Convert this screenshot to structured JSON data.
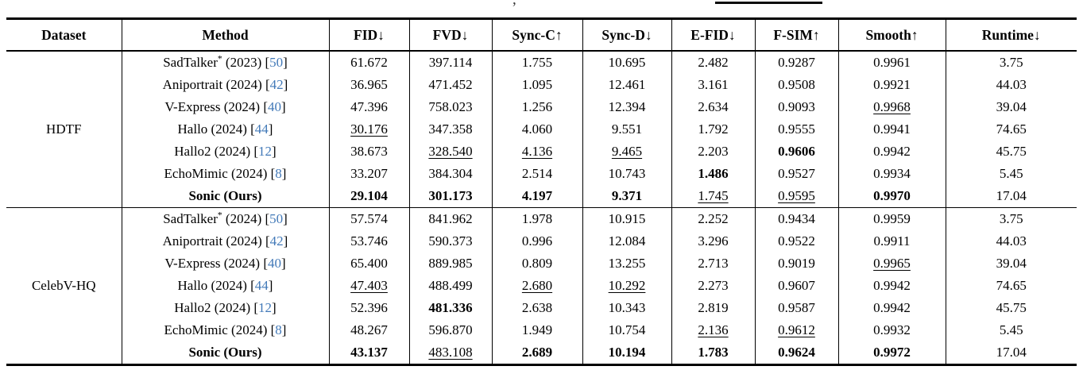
{
  "artifacts": {
    "caption_comma": ","
  },
  "colors": {
    "citation_blue": "#4279b8",
    "text": "#000000",
    "rules": "#000000"
  },
  "header": {
    "columns": [
      "Dataset",
      "Method",
      "FID↓",
      "FVD↓",
      "Sync-C↑",
      "Sync-D↓",
      "E-FID↓",
      "F-SIM↑",
      "Smooth↑",
      "Runtime↓"
    ]
  },
  "groups": [
    {
      "dataset": "HDTF",
      "rows": [
        {
          "method": {
            "bold": false,
            "parts": [
              {
                "t": "SadTalker"
              },
              {
                "t": "*",
                "sup": true
              },
              {
                "t": " (2023) ["
              },
              {
                "t": "50",
                "cite": true
              },
              {
                "t": "]"
              }
            ]
          },
          "metrics": [
            {
              "t": "61.672",
              "f": "n"
            },
            {
              "t": "397.114",
              "f": "n"
            },
            {
              "t": "1.755",
              "f": "n"
            },
            {
              "t": "10.695",
              "f": "n"
            },
            {
              "t": "2.482",
              "f": "n"
            },
            {
              "t": "0.9287",
              "f": "n"
            },
            {
              "t": "0.9961",
              "f": "n"
            },
            {
              "t": "3.75",
              "f": "n"
            }
          ]
        },
        {
          "method": {
            "bold": false,
            "parts": [
              {
                "t": "Aniportrait (2024) ["
              },
              {
                "t": "42",
                "cite": true
              },
              {
                "t": "]"
              }
            ]
          },
          "metrics": [
            {
              "t": "36.965",
              "f": "n"
            },
            {
              "t": "471.452",
              "f": "n"
            },
            {
              "t": "1.095",
              "f": "n"
            },
            {
              "t": "12.461",
              "f": "n"
            },
            {
              "t": "3.161",
              "f": "n"
            },
            {
              "t": "0.9508",
              "f": "n"
            },
            {
              "t": "0.9921",
              "f": "n"
            },
            {
              "t": "44.03",
              "f": "n"
            }
          ]
        },
        {
          "method": {
            "bold": false,
            "parts": [
              {
                "t": "V-Express (2024) ["
              },
              {
                "t": "40",
                "cite": true
              },
              {
                "t": "]"
              }
            ]
          },
          "metrics": [
            {
              "t": "47.396",
              "f": "n"
            },
            {
              "t": "758.023",
              "f": "n"
            },
            {
              "t": "1.256",
              "f": "n"
            },
            {
              "t": "12.394",
              "f": "n"
            },
            {
              "t": "2.634",
              "f": "n"
            },
            {
              "t": "0.9093",
              "f": "n"
            },
            {
              "t": "0.9968",
              "f": "u"
            },
            {
              "t": "39.04",
              "f": "n"
            }
          ]
        },
        {
          "method": {
            "bold": false,
            "parts": [
              {
                "t": "Hallo (2024) ["
              },
              {
                "t": "44",
                "cite": true
              },
              {
                "t": "]"
              }
            ]
          },
          "metrics": [
            {
              "t": "30.176",
              "f": "u"
            },
            {
              "t": "347.358",
              "f": "n"
            },
            {
              "t": "4.060",
              "f": "n"
            },
            {
              "t": "9.551",
              "f": "n"
            },
            {
              "t": "1.792",
              "f": "n"
            },
            {
              "t": "0.9555",
              "f": "n"
            },
            {
              "t": "0.9941",
              "f": "n"
            },
            {
              "t": "74.65",
              "f": "n"
            }
          ]
        },
        {
          "method": {
            "bold": false,
            "parts": [
              {
                "t": "Hallo2 (2024) ["
              },
              {
                "t": "12",
                "cite": true
              },
              {
                "t": "]"
              }
            ]
          },
          "metrics": [
            {
              "t": "38.673",
              "f": "n"
            },
            {
              "t": "328.540",
              "f": "u"
            },
            {
              "t": "4.136",
              "f": "u"
            },
            {
              "t": "9.465",
              "f": "u"
            },
            {
              "t": "2.203",
              "f": "n"
            },
            {
              "t": "0.9606",
              "f": "b"
            },
            {
              "t": "0.9942",
              "f": "n"
            },
            {
              "t": "45.75",
              "f": "n"
            }
          ]
        },
        {
          "method": {
            "bold": false,
            "parts": [
              {
                "t": "EchoMimic (2024) ["
              },
              {
                "t": "8",
                "cite": true
              },
              {
                "t": "]"
              }
            ]
          },
          "metrics": [
            {
              "t": "33.207",
              "f": "n"
            },
            {
              "t": "384.304",
              "f": "n"
            },
            {
              "t": "2.514",
              "f": "n"
            },
            {
              "t": "10.743",
              "f": "n"
            },
            {
              "t": "1.486",
              "f": "b"
            },
            {
              "t": "0.9527",
              "f": "n"
            },
            {
              "t": "0.9934",
              "f": "n"
            },
            {
              "t": "5.45",
              "f": "n"
            }
          ]
        },
        {
          "method": {
            "bold": true,
            "parts": [
              {
                "t": "Sonic (Ours)"
              }
            ]
          },
          "metrics": [
            {
              "t": "29.104",
              "f": "b"
            },
            {
              "t": "301.173",
              "f": "b"
            },
            {
              "t": "4.197",
              "f": "b"
            },
            {
              "t": "9.371",
              "f": "b"
            },
            {
              "t": "1.745",
              "f": "u"
            },
            {
              "t": "0.9595",
              "f": "u"
            },
            {
              "t": "0.9970",
              "f": "b"
            },
            {
              "t": "17.04",
              "f": "n"
            }
          ]
        }
      ]
    },
    {
      "dataset": "CelebV-HQ",
      "rows": [
        {
          "method": {
            "bold": false,
            "parts": [
              {
                "t": "SadTalker"
              },
              {
                "t": "*",
                "sup": true
              },
              {
                "t": " (2024) ["
              },
              {
                "t": "50",
                "cite": true
              },
              {
                "t": "]"
              }
            ]
          },
          "metrics": [
            {
              "t": "57.574",
              "f": "n"
            },
            {
              "t": "841.962",
              "f": "n"
            },
            {
              "t": "1.978",
              "f": "n"
            },
            {
              "t": "10.915",
              "f": "n"
            },
            {
              "t": "2.252",
              "f": "n"
            },
            {
              "t": "0.9434",
              "f": "n"
            },
            {
              "t": "0.9959",
              "f": "n"
            },
            {
              "t": "3.75",
              "f": "n"
            }
          ]
        },
        {
          "method": {
            "bold": false,
            "parts": [
              {
                "t": "Aniportrait (2024) ["
              },
              {
                "t": "42",
                "cite": true
              },
              {
                "t": "]"
              }
            ]
          },
          "metrics": [
            {
              "t": "53.746",
              "f": "n"
            },
            {
              "t": "590.373",
              "f": "n"
            },
            {
              "t": "0.996",
              "f": "n"
            },
            {
              "t": "12.084",
              "f": "n"
            },
            {
              "t": "3.296",
              "f": "n"
            },
            {
              "t": "0.9522",
              "f": "n"
            },
            {
              "t": "0.9911",
              "f": "n"
            },
            {
              "t": "44.03",
              "f": "n"
            }
          ]
        },
        {
          "method": {
            "bold": false,
            "parts": [
              {
                "t": "V-Express (2024) ["
              },
              {
                "t": "40",
                "cite": true
              },
              {
                "t": "]"
              }
            ]
          },
          "metrics": [
            {
              "t": "65.400",
              "f": "n"
            },
            {
              "t": "889.985",
              "f": "n"
            },
            {
              "t": "0.809",
              "f": "n"
            },
            {
              "t": "13.255",
              "f": "n"
            },
            {
              "t": "2.713",
              "f": "n"
            },
            {
              "t": "0.9019",
              "f": "n"
            },
            {
              "t": "0.9965",
              "f": "u"
            },
            {
              "t": "39.04",
              "f": "n"
            }
          ]
        },
        {
          "method": {
            "bold": false,
            "parts": [
              {
                "t": "Hallo (2024) ["
              },
              {
                "t": "44",
                "cite": true
              },
              {
                "t": "]"
              }
            ]
          },
          "metrics": [
            {
              "t": "47.403",
              "f": "u"
            },
            {
              "t": "488.499",
              "f": "n"
            },
            {
              "t": "2.680",
              "f": "u"
            },
            {
              "t": "10.292",
              "f": "u"
            },
            {
              "t": "2.273",
              "f": "n"
            },
            {
              "t": "0.9607",
              "f": "n"
            },
            {
              "t": "0.9942",
              "f": "n"
            },
            {
              "t": "74.65",
              "f": "n"
            }
          ]
        },
        {
          "method": {
            "bold": false,
            "parts": [
              {
                "t": "Hallo2 (2024) ["
              },
              {
                "t": "12",
                "cite": true
              },
              {
                "t": "]"
              }
            ]
          },
          "metrics": [
            {
              "t": "52.396",
              "f": "n"
            },
            {
              "t": "481.336",
              "f": "b"
            },
            {
              "t": "2.638",
              "f": "n"
            },
            {
              "t": "10.343",
              "f": "n"
            },
            {
              "t": "2.819",
              "f": "n"
            },
            {
              "t": "0.9587",
              "f": "n"
            },
            {
              "t": "0.9942",
              "f": "n"
            },
            {
              "t": "45.75",
              "f": "n"
            }
          ]
        },
        {
          "method": {
            "bold": false,
            "parts": [
              {
                "t": "EchoMimic (2024) ["
              },
              {
                "t": "8",
                "cite": true
              },
              {
                "t": "]"
              }
            ]
          },
          "metrics": [
            {
              "t": "48.267",
              "f": "n"
            },
            {
              "t": "596.870",
              "f": "n"
            },
            {
              "t": "1.949",
              "f": "n"
            },
            {
              "t": "10.754",
              "f": "n"
            },
            {
              "t": "2.136",
              "f": "u"
            },
            {
              "t": "0.9612",
              "f": "u"
            },
            {
              "t": "0.9932",
              "f": "n"
            },
            {
              "t": "5.45",
              "f": "n"
            }
          ]
        },
        {
          "method": {
            "bold": true,
            "parts": [
              {
                "t": "Sonic (Ours)"
              }
            ]
          },
          "metrics": [
            {
              "t": "43.137",
              "f": "b"
            },
            {
              "t": "483.108",
              "f": "u"
            },
            {
              "t": "2.689",
              "f": "b"
            },
            {
              "t": "10.194",
              "f": "b"
            },
            {
              "t": "1.783",
              "f": "b"
            },
            {
              "t": "0.9624",
              "f": "b"
            },
            {
              "t": "0.9972",
              "f": "b"
            },
            {
              "t": "17.04",
              "f": "n"
            }
          ]
        }
      ]
    }
  ]
}
